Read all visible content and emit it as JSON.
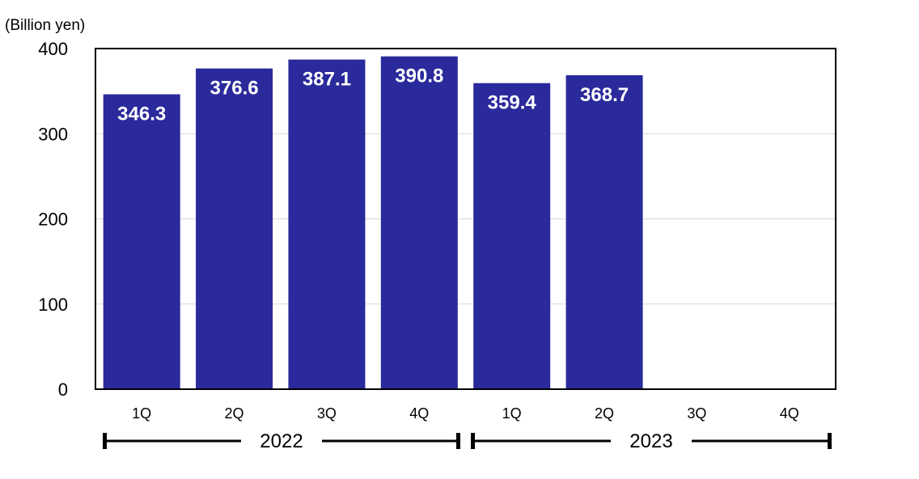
{
  "chart_data": {
    "type": "bar",
    "ylabel": "(Billion yen)",
    "ylim": [
      0,
      400
    ],
    "yticks": [
      0,
      100,
      200,
      300,
      400
    ],
    "grid": true,
    "categories": [
      "1Q",
      "2Q",
      "3Q",
      "4Q",
      "1Q",
      "2Q",
      "3Q",
      "4Q"
    ],
    "values": [
      346.3,
      376.6,
      387.1,
      390.8,
      359.4,
      368.7,
      null,
      null
    ],
    "data_labels": [
      "346.3",
      "376.6",
      "387.1",
      "390.8",
      "359.4",
      "368.7",
      "",
      ""
    ],
    "groups": [
      {
        "label": "2022",
        "start": 0,
        "end": 3
      },
      {
        "label": "2023",
        "start": 4,
        "end": 7
      }
    ],
    "colors": {
      "bar": "#2a2a9c",
      "grid": "#d9d9d9",
      "axis": "#000000"
    }
  }
}
